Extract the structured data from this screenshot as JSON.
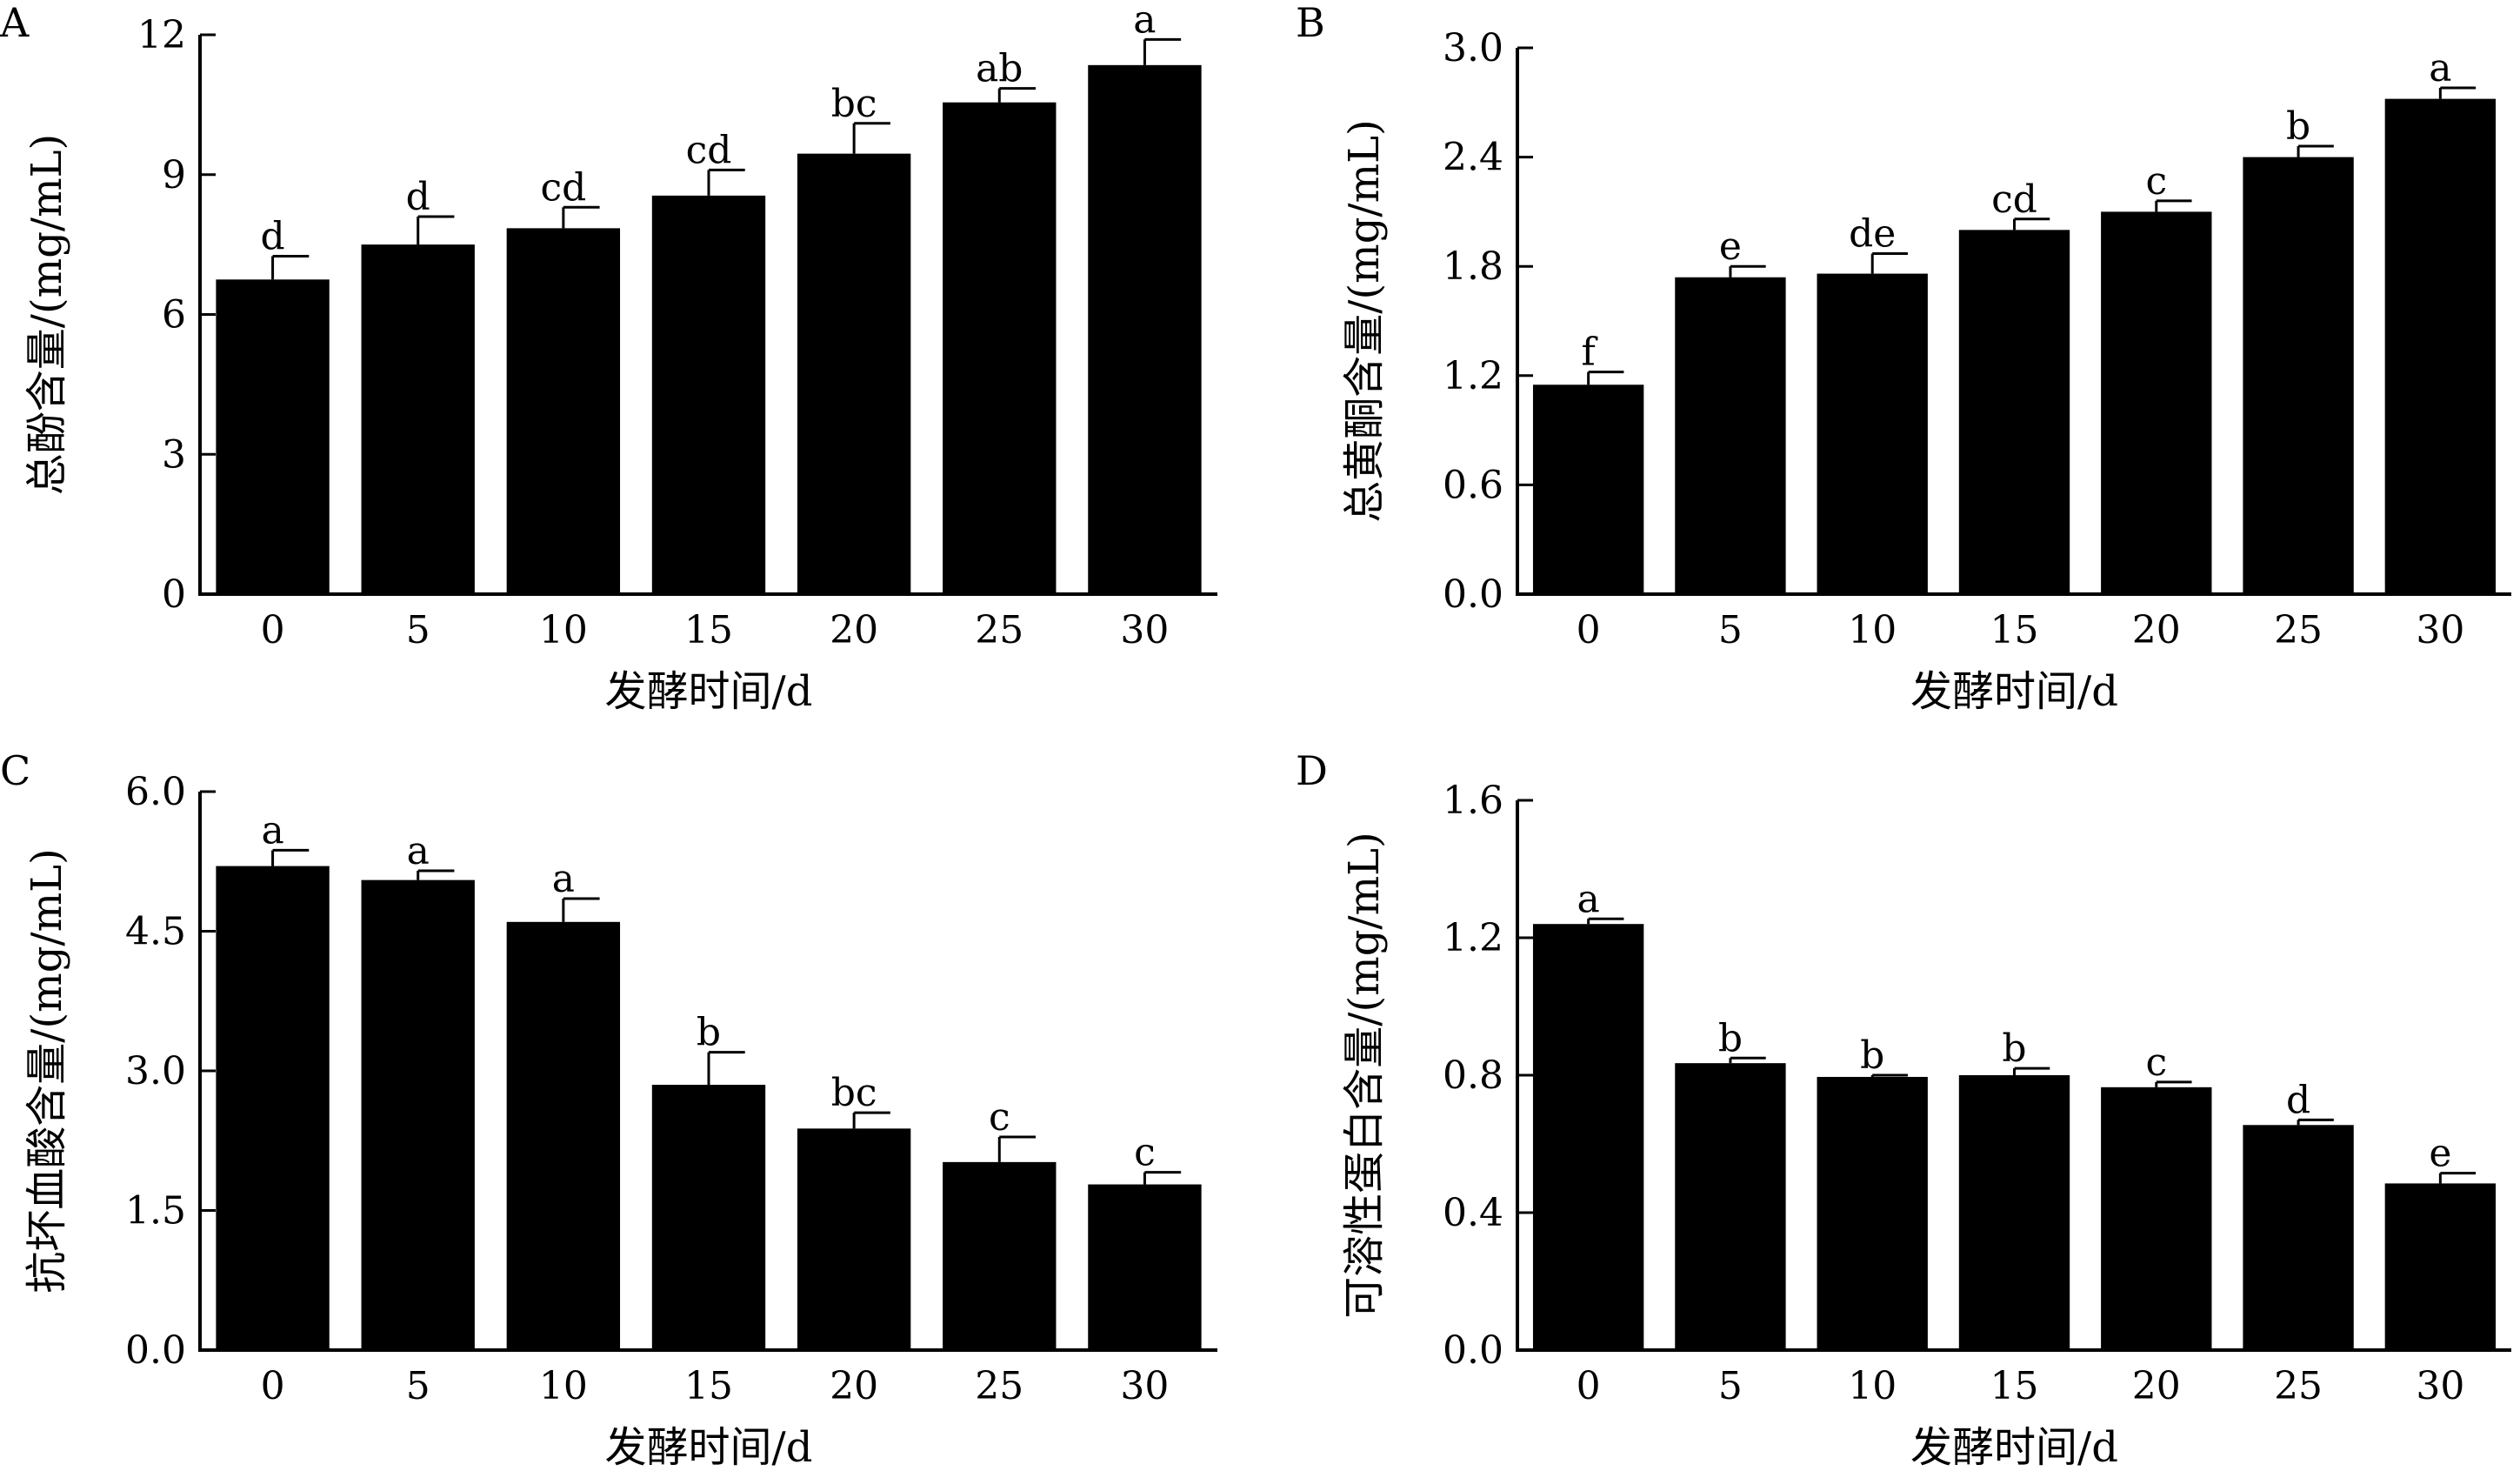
{
  "figure": {
    "bar_color": "#000000",
    "background": "#ffffff"
  },
  "chart_data": [
    {
      "type": "bar",
      "panel_label": "A",
      "categories": [
        "0",
        "5",
        "10",
        "15",
        "20",
        "25",
        "30"
      ],
      "values": [
        6.75,
        7.5,
        7.85,
        8.55,
        9.45,
        10.55,
        11.35
      ],
      "errors": [
        0.5,
        0.6,
        0.45,
        0.55,
        0.65,
        0.3,
        0.55
      ],
      "significance": [
        "d",
        "d",
        "cd",
        "cd",
        "bc",
        "ab",
        "a"
      ],
      "xlabel": "发酵时间/d",
      "ylabel": "总酚含量/(mg/mL)",
      "ylim": [
        0,
        12
      ],
      "yticks": [
        0,
        3,
        6,
        9,
        12
      ],
      "ytick_labels": [
        "0",
        "3",
        "6",
        "9",
        "12"
      ]
    },
    {
      "type": "bar",
      "panel_label": "B",
      "categories": [
        "0",
        "5",
        "10",
        "15",
        "20",
        "25",
        "30"
      ],
      "values": [
        1.15,
        1.74,
        1.76,
        2.0,
        2.1,
        2.4,
        2.72
      ],
      "errors": [
        0.07,
        0.06,
        0.11,
        0.06,
        0.06,
        0.06,
        0.06
      ],
      "significance": [
        "f",
        "e",
        "de",
        "cd",
        "c",
        "b",
        "a"
      ],
      "xlabel": "发酵时间/d",
      "ylabel": "总黄酮含量/(mg/mL)",
      "ylim": [
        0,
        3.0
      ],
      "yticks": [
        0,
        0.6,
        1.2,
        1.8,
        2.4,
        3.0
      ],
      "ytick_labels": [
        "0.0",
        "0.6",
        "1.2",
        "1.8",
        "2.4",
        "3.0"
      ]
    },
    {
      "type": "bar",
      "panel_label": "C",
      "categories": [
        "0",
        "5",
        "10",
        "15",
        "20",
        "25",
        "30"
      ],
      "values": [
        5.2,
        5.05,
        4.6,
        2.85,
        2.38,
        2.02,
        1.78
      ],
      "errors": [
        0.17,
        0.1,
        0.25,
        0.35,
        0.17,
        0.27,
        0.13
      ],
      "significance": [
        "a",
        "a",
        "a",
        "b",
        "bc",
        "c",
        "c"
      ],
      "xlabel": "发酵时间/d",
      "ylabel": "抗坏血酸含量/(mg/mL)",
      "ylim": [
        0,
        6.0
      ],
      "yticks": [
        0,
        1.5,
        3.0,
        4.5,
        6.0
      ],
      "ytick_labels": [
        "0.0",
        "1.5",
        "3.0",
        "4.5",
        "6.0"
      ]
    },
    {
      "type": "bar",
      "panel_label": "D",
      "categories": [
        "0",
        "5",
        "10",
        "15",
        "20",
        "25",
        "30"
      ],
      "values": [
        1.24,
        0.835,
        0.795,
        0.8,
        0.765,
        0.655,
        0.485
      ],
      "errors": [
        0.015,
        0.015,
        0.005,
        0.02,
        0.015,
        0.015,
        0.03
      ],
      "significance": [
        "a",
        "b",
        "b",
        "b",
        "c",
        "d",
        "e"
      ],
      "xlabel": "发酵时间/d",
      "ylabel": "可溶性蛋白含量/(mg/mL)",
      "ylim": [
        0,
        1.6
      ],
      "yticks": [
        0,
        0.4,
        0.8,
        1.2,
        1.6
      ],
      "ytick_labels": [
        "0.0",
        "0.4",
        "0.8",
        "1.2",
        "1.6"
      ]
    }
  ]
}
